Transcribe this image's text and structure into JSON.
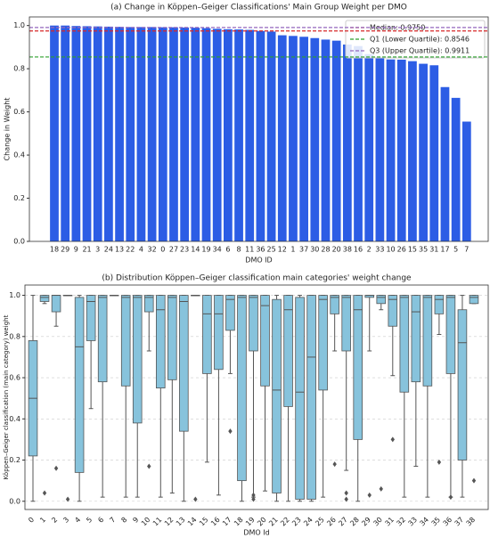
{
  "chart_data": [
    {
      "type": "bar",
      "title": "(a) Change in Köppen–Geiger Classifications' Main Group Weight per DMO",
      "x_label": "DMO ID",
      "y_label": "Change in Weight",
      "categories": [
        "18",
        "29",
        "9",
        "21",
        "3",
        "24",
        "13",
        "22",
        "4",
        "32",
        "0",
        "27",
        "23",
        "14",
        "19",
        "34",
        "6",
        "8",
        "11",
        "36",
        "25",
        "12",
        "1",
        "37",
        "30",
        "28",
        "20",
        "38",
        "16",
        "2",
        "33",
        "10",
        "26",
        "15",
        "35",
        "31",
        "17",
        "5",
        "7"
      ],
      "values": [
        1.0,
        1.0,
        0.998,
        0.997,
        0.996,
        0.995,
        0.994,
        0.993,
        0.993,
        0.993,
        0.992,
        0.992,
        0.991,
        0.99,
        0.988,
        0.985,
        0.983,
        0.982,
        0.98,
        0.975,
        0.972,
        0.955,
        0.952,
        0.948,
        0.942,
        0.935,
        0.93,
        0.912,
        0.905,
        0.868,
        0.848,
        0.843,
        0.842,
        0.835,
        0.823,
        0.816,
        0.715,
        0.665,
        0.555
      ],
      "color": "#2c5de5",
      "ylim": [
        0,
        1.04
      ],
      "yticks": [
        {
          "value": 0,
          "label": "0.0"
        },
        {
          "value": 0.2,
          "label": "0.2"
        },
        {
          "value": 0.4,
          "label": "0.4"
        },
        {
          "value": 0.6,
          "label": "0.6"
        },
        {
          "value": 0.8,
          "label": "0.8"
        },
        {
          "value": 1,
          "label": "1.0"
        }
      ],
      "reference_lines": [
        {
          "name": "Median: 0.9750",
          "value": 0.975,
          "color": "#d62728"
        },
        {
          "name": "Q1 (Lower Quartile): 0.8546",
          "value": 0.8546,
          "color": "#2ca02c"
        },
        {
          "name": "Q3 (Upper Quartile): 0.9911",
          "value": 0.9911,
          "color": "#9467bd"
        }
      ],
      "legend": "upper right"
    },
    {
      "type": "box",
      "title": "(b) Distribution Köppen–Geiger classification main categories' weight change",
      "x_label": "DMO Id",
      "y_label": "Köppen–Geiger classification (main category) weight",
      "categories": [
        "0",
        "1",
        "2",
        "3",
        "4",
        "5",
        "6",
        "7",
        "8",
        "9",
        "10",
        "11",
        "12",
        "13",
        "14",
        "15",
        "16",
        "17",
        "18",
        "19",
        "20",
        "21",
        "22",
        "23",
        "24",
        "25",
        "26",
        "27",
        "28",
        "29",
        "30",
        "31",
        "32",
        "33",
        "34",
        "35",
        "36",
        "37",
        "38"
      ],
      "boxes": [
        {
          "low": 0.0,
          "q1": 0.22,
          "median": 0.5,
          "q3": 0.78,
          "high": 1.0,
          "outliers": []
        },
        {
          "low": 0.96,
          "q1": 0.97,
          "median": 0.99,
          "q3": 1.0,
          "high": 1.0,
          "outliers": [
            0.04
          ]
        },
        {
          "low": 0.85,
          "q1": 0.92,
          "median": 1.0,
          "q3": 1.0,
          "high": 1.0,
          "outliers": [
            0.16
          ]
        },
        {
          "low": 1.0,
          "q1": 1.0,
          "median": 1.0,
          "q3": 1.0,
          "high": 1.0,
          "outliers": [
            0.01
          ]
        },
        {
          "low": 0.0,
          "q1": 0.14,
          "median": 0.75,
          "q3": 0.99,
          "high": 1.0,
          "outliers": []
        },
        {
          "low": 0.45,
          "q1": 0.78,
          "median": 0.97,
          "q3": 1.0,
          "high": 1.0,
          "outliers": []
        },
        {
          "low": 0.02,
          "q1": 0.58,
          "median": 0.99,
          "q3": 1.0,
          "high": 1.0,
          "outliers": []
        },
        {
          "low": 1.0,
          "q1": 1.0,
          "median": 1.0,
          "q3": 1.0,
          "high": 1.0,
          "outliers": []
        },
        {
          "low": 0.02,
          "q1": 0.56,
          "median": 0.99,
          "q3": 1.0,
          "high": 1.0,
          "outliers": []
        },
        {
          "low": 0.02,
          "q1": 0.38,
          "median": 0.99,
          "q3": 1.0,
          "high": 1.0,
          "outliers": []
        },
        {
          "low": 0.73,
          "q1": 0.92,
          "median": 0.99,
          "q3": 1.0,
          "high": 1.0,
          "outliers": [
            0.17
          ]
        },
        {
          "low": 0.02,
          "q1": 0.55,
          "median": 0.93,
          "q3": 1.0,
          "high": 1.0,
          "outliers": []
        },
        {
          "low": 0.04,
          "q1": 0.59,
          "median": 0.99,
          "q3": 1.0,
          "high": 1.0,
          "outliers": []
        },
        {
          "low": 0.0,
          "q1": 0.34,
          "median": 0.97,
          "q3": 1.0,
          "high": 1.0,
          "outliers": []
        },
        {
          "low": 1.0,
          "q1": 1.0,
          "median": 1.0,
          "q3": 1.0,
          "high": 1.0,
          "outliers": [
            0.01
          ]
        },
        {
          "low": 0.19,
          "q1": 0.62,
          "median": 0.91,
          "q3": 1.0,
          "high": 1.0,
          "outliers": []
        },
        {
          "low": 0.03,
          "q1": 0.64,
          "median": 0.91,
          "q3": 1.0,
          "high": 1.0,
          "outliers": []
        },
        {
          "low": 0.62,
          "q1": 0.83,
          "median": 0.98,
          "q3": 1.0,
          "high": 1.0,
          "outliers": [
            0.34
          ]
        },
        {
          "low": 0.0,
          "q1": 0.1,
          "median": 0.99,
          "q3": 1.0,
          "high": 1.0,
          "outliers": []
        },
        {
          "low": 0.02,
          "q1": 0.73,
          "median": 0.99,
          "q3": 1.0,
          "high": 1.0,
          "outliers": [
            0.01,
            0.03
          ]
        },
        {
          "low": 0.05,
          "q1": 0.56,
          "median": 0.95,
          "q3": 1.0,
          "high": 1.0,
          "outliers": []
        },
        {
          "low": 0.0,
          "q1": 0.04,
          "median": 0.54,
          "q3": 0.98,
          "high": 1.0,
          "outliers": []
        },
        {
          "low": 0.0,
          "q1": 0.46,
          "median": 0.93,
          "q3": 1.0,
          "high": 1.0,
          "outliers": []
        },
        {
          "low": 0.0,
          "q1": 0.01,
          "median": 0.53,
          "q3": 0.99,
          "high": 1.0,
          "outliers": []
        },
        {
          "low": 0.0,
          "q1": 0.01,
          "median": 0.7,
          "q3": 1.0,
          "high": 1.0,
          "outliers": []
        },
        {
          "low": 0.02,
          "q1": 0.54,
          "median": 0.98,
          "q3": 1.0,
          "high": 1.0,
          "outliers": []
        },
        {
          "low": 0.73,
          "q1": 0.91,
          "median": 0.99,
          "q3": 1.0,
          "high": 1.0,
          "outliers": [
            0.18
          ]
        },
        {
          "low": 0.15,
          "q1": 0.73,
          "median": 0.99,
          "q3": 1.0,
          "high": 1.0,
          "outliers": [
            0.01,
            0.04
          ]
        },
        {
          "low": 0.0,
          "q1": 0.3,
          "median": 0.93,
          "q3": 1.0,
          "high": 1.0,
          "outliers": []
        },
        {
          "low": 0.73,
          "q1": 0.99,
          "median": 1.0,
          "q3": 1.0,
          "high": 1.0,
          "outliers": [
            0.03
          ]
        },
        {
          "low": 0.93,
          "q1": 0.96,
          "median": 0.99,
          "q3": 1.0,
          "high": 1.0,
          "outliers": [
            0.06
          ]
        },
        {
          "low": 0.61,
          "q1": 0.85,
          "median": 0.98,
          "q3": 1.0,
          "high": 1.0,
          "outliers": [
            0.3
          ]
        },
        {
          "low": 0.02,
          "q1": 0.53,
          "median": 0.99,
          "q3": 1.0,
          "high": 1.0,
          "outliers": []
        },
        {
          "low": 0.17,
          "q1": 0.58,
          "median": 0.92,
          "q3": 1.0,
          "high": 1.0,
          "outliers": []
        },
        {
          "low": 0.02,
          "q1": 0.56,
          "median": 0.99,
          "q3": 1.0,
          "high": 1.0,
          "outliers": []
        },
        {
          "low": 0.81,
          "q1": 0.91,
          "median": 0.98,
          "q3": 1.0,
          "high": 1.0,
          "outliers": [
            0.19
          ]
        },
        {
          "low": 0.02,
          "q1": 0.62,
          "median": 0.99,
          "q3": 1.0,
          "high": 1.0,
          "outliers": [
            0.02
          ]
        },
        {
          "low": 0.02,
          "q1": 0.2,
          "median": 0.77,
          "q3": 0.93,
          "high": 1.0,
          "outliers": []
        },
        {
          "low": 0.96,
          "q1": 0.96,
          "median": 0.99,
          "q3": 1.0,
          "high": 1.0,
          "outliers": [
            0.1
          ]
        }
      ],
      "color": "#87c3dc",
      "ylim": [
        -0.04,
        1.05
      ],
      "yticks": [
        {
          "value": 0,
          "label": "0.0"
        },
        {
          "value": 0.2,
          "label": "0.2"
        },
        {
          "value": 0.4,
          "label": "0.4"
        },
        {
          "value": 0.6,
          "label": "0.6"
        },
        {
          "value": 0.8,
          "label": "0.8"
        },
        {
          "value": 1,
          "label": "1.0"
        }
      ],
      "grid": true
    }
  ]
}
